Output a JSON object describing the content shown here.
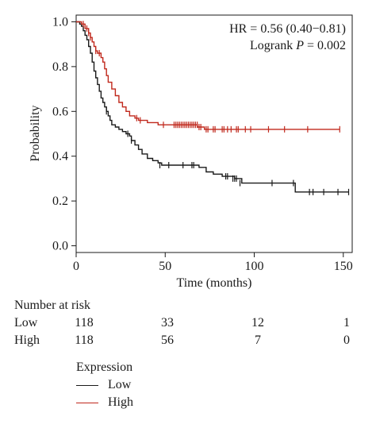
{
  "colors": {
    "low": "#1a1a1a",
    "high": "#c0281c"
  },
  "chart_data": {
    "type": "line",
    "title": "",
    "xlabel": "Time (months)",
    "ylabel": "Probability",
    "xlim": [
      0,
      155
    ],
    "ylim": [
      -0.03,
      1.03
    ],
    "xticks": [
      0,
      50,
      100,
      150
    ],
    "yticks": [
      0.0,
      0.2,
      0.4,
      0.6,
      0.8,
      1.0
    ],
    "grid": false,
    "annotations": {
      "hr": "HR = 0.56 (0.40−0.81)",
      "logrank_prefix": "Logrank ",
      "logrank_p": "P",
      "logrank_suffix": " = 0.002"
    },
    "series": [
      {
        "name": "Low",
        "color": "#1a1a1a",
        "steps": [
          [
            0,
            1.0
          ],
          [
            2,
            0.99
          ],
          [
            3,
            0.98
          ],
          [
            4,
            0.96
          ],
          [
            5,
            0.94
          ],
          [
            6,
            0.92
          ],
          [
            7,
            0.89
          ],
          [
            8,
            0.86
          ],
          [
            9,
            0.82
          ],
          [
            10,
            0.78
          ],
          [
            11,
            0.75
          ],
          [
            12,
            0.72
          ],
          [
            13,
            0.69
          ],
          [
            14,
            0.66
          ],
          [
            15,
            0.64
          ],
          [
            16,
            0.62
          ],
          [
            17,
            0.6
          ],
          [
            18,
            0.58
          ],
          [
            19,
            0.56
          ],
          [
            20,
            0.54
          ],
          [
            22,
            0.53
          ],
          [
            24,
            0.52
          ],
          [
            26,
            0.51
          ],
          [
            28,
            0.5
          ],
          [
            30,
            0.49
          ],
          [
            31,
            0.47
          ],
          [
            33,
            0.45
          ],
          [
            35,
            0.43
          ],
          [
            37,
            0.41
          ],
          [
            40,
            0.39
          ],
          [
            43,
            0.38
          ],
          [
            46,
            0.37
          ],
          [
            48,
            0.36
          ],
          [
            69,
            0.35
          ],
          [
            73,
            0.33
          ],
          [
            77,
            0.32
          ],
          [
            82,
            0.31
          ],
          [
            89,
            0.3
          ],
          [
            93,
            0.28
          ],
          [
            123,
            0.24
          ],
          [
            153,
            0.24
          ]
        ],
        "censored": [
          [
            17,
            0.6
          ],
          [
            29,
            0.5
          ],
          [
            31,
            0.47
          ],
          [
            47,
            0.36
          ],
          [
            52,
            0.36
          ],
          [
            60,
            0.36
          ],
          [
            65,
            0.36
          ],
          [
            66,
            0.36
          ],
          [
            84,
            0.31
          ],
          [
            85,
            0.31
          ],
          [
            88,
            0.3
          ],
          [
            89,
            0.3
          ],
          [
            90,
            0.3
          ],
          [
            92,
            0.28
          ],
          [
            110,
            0.28
          ],
          [
            122,
            0.28
          ],
          [
            131,
            0.24
          ],
          [
            133,
            0.24
          ],
          [
            139,
            0.24
          ],
          [
            147,
            0.24
          ],
          [
            153,
            0.24
          ]
        ]
      },
      {
        "name": "High",
        "color": "#c0281c",
        "steps": [
          [
            0,
            1.0
          ],
          [
            3,
            0.99
          ],
          [
            5,
            0.97
          ],
          [
            7,
            0.95
          ],
          [
            8,
            0.93
          ],
          [
            9,
            0.91
          ],
          [
            10,
            0.89
          ],
          [
            11,
            0.87
          ],
          [
            12,
            0.86
          ],
          [
            14,
            0.84
          ],
          [
            15,
            0.82
          ],
          [
            16,
            0.79
          ],
          [
            17,
            0.76
          ],
          [
            18,
            0.73
          ],
          [
            20,
            0.7
          ],
          [
            22,
            0.67
          ],
          [
            24,
            0.64
          ],
          [
            26,
            0.62
          ],
          [
            28,
            0.6
          ],
          [
            30,
            0.58
          ],
          [
            33,
            0.57
          ],
          [
            35,
            0.56
          ],
          [
            40,
            0.55
          ],
          [
            46,
            0.54
          ],
          [
            68,
            0.53
          ],
          [
            72,
            0.52
          ],
          [
            148,
            0.52
          ]
        ],
        "censored": [
          [
            4,
            0.99
          ],
          [
            6,
            0.97
          ],
          [
            7,
            0.95
          ],
          [
            8,
            0.93
          ],
          [
            11,
            0.87
          ],
          [
            13,
            0.86
          ],
          [
            34,
            0.57
          ],
          [
            36,
            0.56
          ],
          [
            49,
            0.54
          ],
          [
            55,
            0.54
          ],
          [
            56,
            0.54
          ],
          [
            57,
            0.54
          ],
          [
            58,
            0.54
          ],
          [
            59,
            0.54
          ],
          [
            60,
            0.54
          ],
          [
            61,
            0.54
          ],
          [
            62,
            0.54
          ],
          [
            63,
            0.54
          ],
          [
            64,
            0.54
          ],
          [
            65,
            0.54
          ],
          [
            66,
            0.54
          ],
          [
            67,
            0.54
          ],
          [
            68,
            0.54
          ],
          [
            69,
            0.53
          ],
          [
            70,
            0.53
          ],
          [
            73,
            0.52
          ],
          [
            74,
            0.52
          ],
          [
            77,
            0.52
          ],
          [
            78,
            0.52
          ],
          [
            82,
            0.52
          ],
          [
            83,
            0.52
          ],
          [
            85,
            0.52
          ],
          [
            87,
            0.52
          ],
          [
            90,
            0.52
          ],
          [
            91,
            0.52
          ],
          [
            95,
            0.52
          ],
          [
            98,
            0.52
          ],
          [
            108,
            0.52
          ],
          [
            117,
            0.52
          ],
          [
            130,
            0.52
          ],
          [
            148,
            0.52
          ]
        ]
      }
    ]
  },
  "risk_table": {
    "title": "Number at risk",
    "rows": [
      {
        "label": "Low",
        "values": [
          "118",
          "33",
          "12",
          "1"
        ]
      },
      {
        "label": "High",
        "values": [
          "118",
          "56",
          "7",
          "0"
        ]
      }
    ]
  },
  "legend": {
    "title": "Expression",
    "items": [
      {
        "label": "Low"
      },
      {
        "label": "High"
      }
    ]
  }
}
